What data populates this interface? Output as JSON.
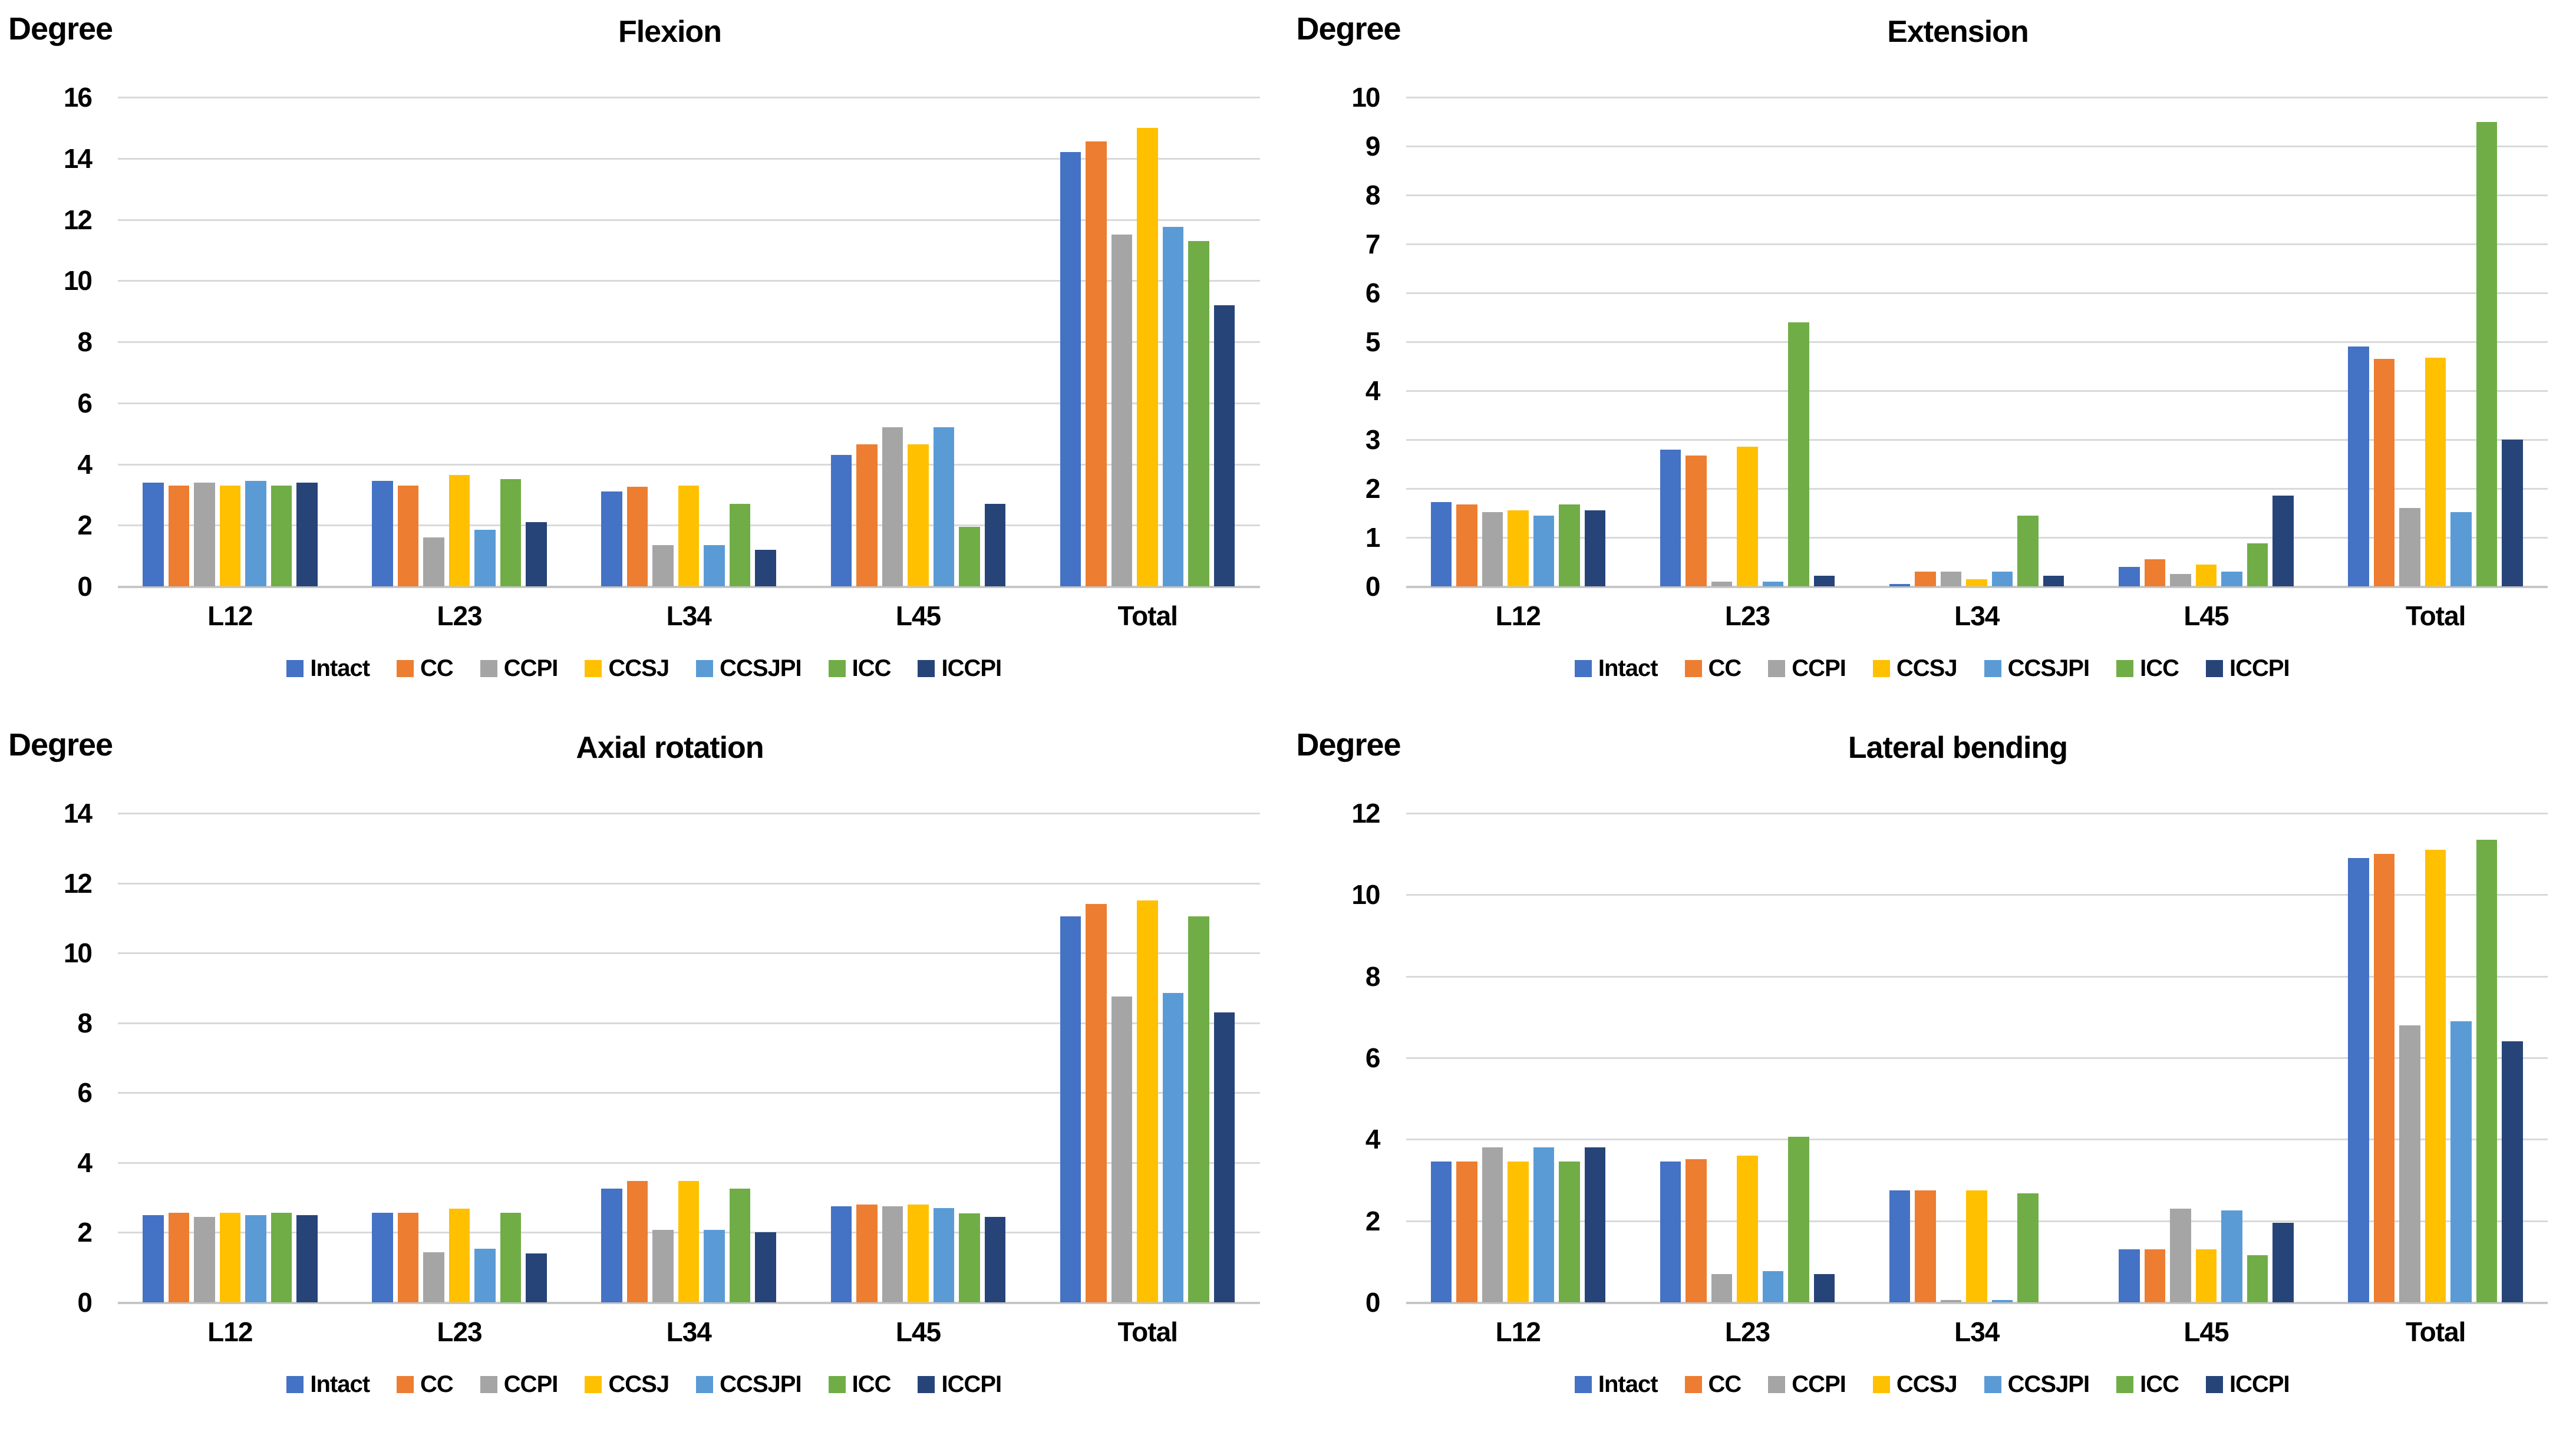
{
  "page_background": "#FFFFFF",
  "colors": {
    "gridline": "#D9D9D9",
    "axis_baseline": "#C6C6C6",
    "text": "#000000"
  },
  "chart_data": [
    {
      "type": "bar",
      "title": "Flexion",
      "ylabel": "Degree",
      "xlabel": "",
      "ylim": [
        0,
        16
      ],
      "ytick_step": 2,
      "grid": true,
      "legend_position": "bottom",
      "categories": [
        "L12",
        "L23",
        "L34",
        "L45",
        "Total"
      ],
      "series": [
        {
          "name": "Intact",
          "color": "#4472C4",
          "values": [
            3.4,
            3.45,
            3.1,
            4.3,
            14.2
          ]
        },
        {
          "name": "CC",
          "color": "#ED7D31",
          "values": [
            3.3,
            3.3,
            3.25,
            4.65,
            14.55
          ]
        },
        {
          "name": "CCPI",
          "color": "#A5A5A5",
          "values": [
            3.4,
            1.6,
            1.35,
            5.2,
            11.5
          ]
        },
        {
          "name": "CCSJ",
          "color": "#FFC000",
          "values": [
            3.3,
            3.65,
            3.3,
            4.65,
            15.0
          ]
        },
        {
          "name": "CCSJPI",
          "color": "#5B9BD5",
          "values": [
            3.45,
            1.85,
            1.35,
            5.2,
            11.75
          ]
        },
        {
          "name": "ICC",
          "color": "#70AD47",
          "values": [
            3.3,
            3.5,
            2.7,
            1.95,
            11.3
          ]
        },
        {
          "name": "ICCPI",
          "color": "#264478",
          "values": [
            3.4,
            2.1,
            1.2,
            2.7,
            9.2
          ]
        }
      ]
    },
    {
      "type": "bar",
      "title": "Extension",
      "ylabel": "Degree",
      "xlabel": "",
      "ylim": [
        0,
        10
      ],
      "ytick_step": 1,
      "grid": true,
      "legend_position": "bottom",
      "categories": [
        "L12",
        "L23",
        "L34",
        "L45",
        "Total"
      ],
      "series": [
        {
          "name": "Intact",
          "color": "#4472C4",
          "values": [
            1.72,
            2.8,
            0.05,
            0.4,
            4.9
          ]
        },
        {
          "name": "CC",
          "color": "#ED7D31",
          "values": [
            1.68,
            2.68,
            0.3,
            0.55,
            4.65
          ]
        },
        {
          "name": "CCPI",
          "color": "#A5A5A5",
          "values": [
            1.52,
            0.1,
            0.3,
            0.25,
            1.6
          ]
        },
        {
          "name": "CCSJ",
          "color": "#FFC000",
          "values": [
            1.55,
            2.85,
            0.15,
            0.45,
            4.67
          ]
        },
        {
          "name": "CCSJPI",
          "color": "#5B9BD5",
          "values": [
            1.45,
            0.1,
            0.3,
            0.3,
            1.52
          ]
        },
        {
          "name": "ICC",
          "color": "#70AD47",
          "values": [
            1.68,
            5.4,
            1.45,
            0.88,
            9.5
          ]
        },
        {
          "name": "ICCPI",
          "color": "#264478",
          "values": [
            1.55,
            0.22,
            0.22,
            1.85,
            3.0
          ]
        }
      ]
    },
    {
      "type": "bar",
      "title": "Axial rotation",
      "ylabel": "Degree",
      "xlabel": "",
      "ylim": [
        0,
        14
      ],
      "ytick_step": 2,
      "grid": true,
      "legend_position": "bottom",
      "categories": [
        "L12",
        "L23",
        "L34",
        "L45",
        "Total"
      ],
      "series": [
        {
          "name": "Intact",
          "color": "#4472C4",
          "values": [
            2.5,
            2.57,
            3.25,
            2.75,
            11.05
          ]
        },
        {
          "name": "CC",
          "color": "#ED7D31",
          "values": [
            2.57,
            2.57,
            3.47,
            2.8,
            11.4
          ]
        },
        {
          "name": "CCPI",
          "color": "#A5A5A5",
          "values": [
            2.45,
            1.43,
            2.07,
            2.75,
            8.75
          ]
        },
        {
          "name": "CCSJ",
          "color": "#FFC000",
          "values": [
            2.57,
            2.68,
            3.47,
            2.8,
            11.5
          ]
        },
        {
          "name": "CCSJPI",
          "color": "#5B9BD5",
          "values": [
            2.5,
            1.54,
            2.08,
            2.7,
            8.85
          ]
        },
        {
          "name": "ICC",
          "color": "#70AD47",
          "values": [
            2.57,
            2.57,
            3.25,
            2.55,
            11.05
          ]
        },
        {
          "name": "ICCPI",
          "color": "#264478",
          "values": [
            2.5,
            1.4,
            2.0,
            2.45,
            8.3
          ]
        }
      ]
    },
    {
      "type": "bar",
      "title": "Lateral bending",
      "ylabel": "Degree",
      "xlabel": "",
      "ylim": [
        0,
        12
      ],
      "ytick_step": 2,
      "grid": true,
      "legend_position": "bottom",
      "categories": [
        "L12",
        "L23",
        "L34",
        "L45",
        "Total"
      ],
      "series": [
        {
          "name": "Intact",
          "color": "#4472C4",
          "values": [
            3.45,
            3.45,
            2.75,
            1.3,
            10.9
          ]
        },
        {
          "name": "CC",
          "color": "#ED7D31",
          "values": [
            3.45,
            3.52,
            2.75,
            1.3,
            11.0
          ]
        },
        {
          "name": "CCPI",
          "color": "#A5A5A5",
          "values": [
            3.8,
            0.7,
            0.06,
            2.3,
            6.8
          ]
        },
        {
          "name": "CCSJ",
          "color": "#FFC000",
          "values": [
            3.45,
            3.6,
            2.75,
            1.3,
            11.1
          ]
        },
        {
          "name": "CCSJPI",
          "color": "#5B9BD5",
          "values": [
            3.8,
            0.77,
            0.06,
            2.25,
            6.9
          ]
        },
        {
          "name": "ICC",
          "color": "#70AD47",
          "values": [
            3.45,
            4.06,
            2.68,
            1.15,
            11.35
          ]
        },
        {
          "name": "ICCPI",
          "color": "#264478",
          "values": [
            3.8,
            0.7,
            0.0,
            1.95,
            6.4
          ]
        }
      ]
    }
  ]
}
